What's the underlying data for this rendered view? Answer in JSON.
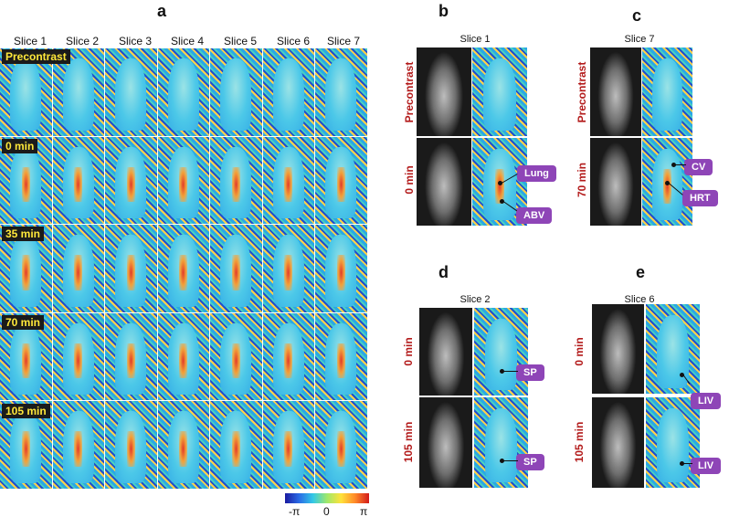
{
  "panels": {
    "a": "a",
    "b": "b",
    "c": "c",
    "d": "d",
    "e": "e"
  },
  "panel_a": {
    "slices": [
      "Slice 1",
      "Slice 2",
      "Slice 3",
      "Slice 4",
      "Slice 5",
      "Slice 6",
      "Slice 7"
    ],
    "rows": [
      "Precontrast",
      "0 min",
      "35 min",
      "70 min",
      "105 min"
    ]
  },
  "colorbar": {
    "min_label": "-π",
    "mid_label": "0",
    "max_label": "π",
    "colors": [
      "#1a1aa0",
      "#2a6be6",
      "#33c8e6",
      "#9fe86a",
      "#ffe23a",
      "#ff8a2a",
      "#d21a1a"
    ]
  },
  "panel_b": {
    "title": "Slice 1",
    "rows": [
      "Precontrast",
      "0 min"
    ],
    "callouts": [
      "Lung",
      "ABV"
    ]
  },
  "panel_c": {
    "title": "Slice 7",
    "rows": [
      "Precontrast",
      "70 min"
    ],
    "callouts": [
      "CV",
      "HRT"
    ]
  },
  "panel_d": {
    "title": "Slice 2",
    "rows": [
      "0 min",
      "105 min"
    ],
    "callouts": [
      "SP",
      "SP"
    ]
  },
  "panel_e": {
    "title": "Slice 6",
    "rows": [
      "0 min",
      "105 min"
    ],
    "callouts": [
      "LIV",
      "LIV"
    ]
  },
  "colors": {
    "row_label_bg": "#1b1b1b",
    "row_label_text": "#ffe83a",
    "side_label": "#b31b1b",
    "callout_bg": "#8e45b7"
  }
}
